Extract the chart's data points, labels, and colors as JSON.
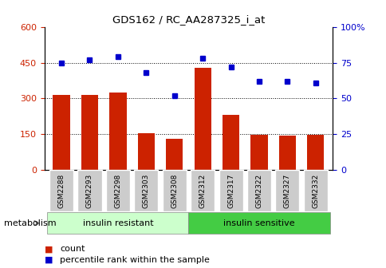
{
  "title": "GDS162 / RC_AA287325_i_at",
  "samples": [
    "GSM2288",
    "GSM2293",
    "GSM2298",
    "GSM2303",
    "GSM2308",
    "GSM2312",
    "GSM2317",
    "GSM2322",
    "GSM2327",
    "GSM2332"
  ],
  "counts": [
    315,
    315,
    325,
    155,
    130,
    430,
    230,
    148,
    145,
    148
  ],
  "percentiles": [
    75,
    77,
    79,
    68,
    52,
    78,
    72,
    62,
    62,
    61
  ],
  "bar_color": "#cc2200",
  "dot_color": "#0000cc",
  "group1_label": "insulin resistant",
  "group2_label": "insulin sensitive",
  "group1_count": 5,
  "group2_count": 5,
  "group1_color": "#ccffcc",
  "group2_color": "#44cc44",
  "metabolism_label": "metabolism",
  "left_ylim": [
    0,
    600
  ],
  "right_ylim": [
    0,
    100
  ],
  "left_yticks": [
    0,
    150,
    300,
    450,
    600
  ],
  "right_yticks": [
    0,
    25,
    50,
    75,
    100
  ],
  "right_yticklabels": [
    "0",
    "25",
    "50",
    "75",
    "100%"
  ],
  "legend_count_label": "count",
  "legend_pct_label": "percentile rank within the sample",
  "tick_label_bg": "#cccccc",
  "gridline_values": [
    150,
    300,
    450
  ]
}
